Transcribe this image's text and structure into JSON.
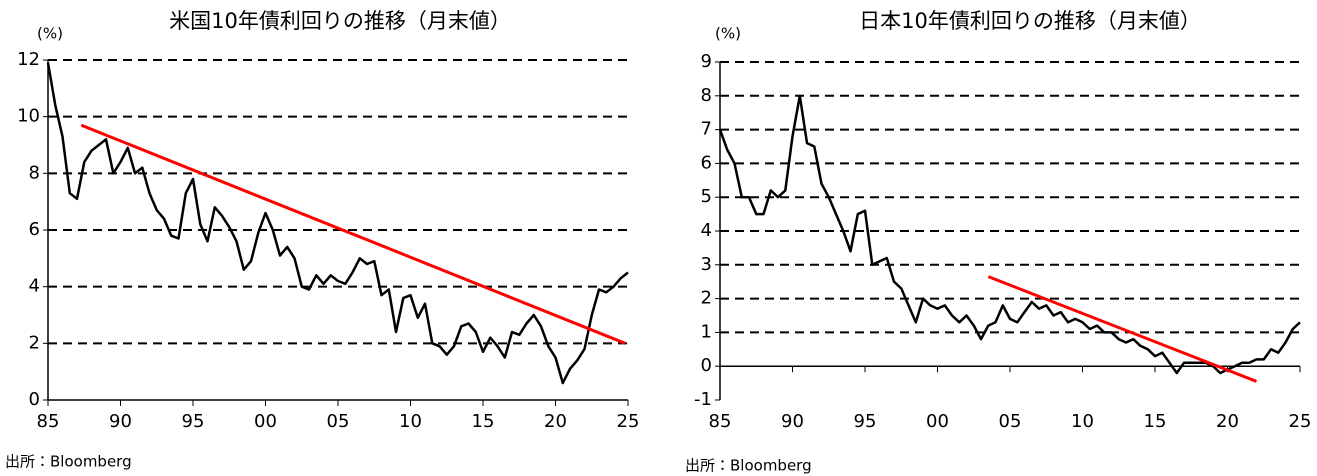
{
  "chart_data": [
    {
      "type": "line",
      "title": "米国10年債利回りの推移（月末値）",
      "y_label": "(%)",
      "source": "出所：Bloomberg",
      "xlim": [
        1985,
        2025
      ],
      "ylim": [
        0,
        12
      ],
      "grid": true,
      "xticks": [
        {
          "value": 1985,
          "label": "85"
        },
        {
          "value": 1990,
          "label": "90"
        },
        {
          "value": 1995,
          "label": "95"
        },
        {
          "value": 2000,
          "label": "00"
        },
        {
          "value": 2005,
          "label": "05"
        },
        {
          "value": 2010,
          "label": "10"
        },
        {
          "value": 2015,
          "label": "15"
        },
        {
          "value": 2020,
          "label": "20"
        },
        {
          "value": 2025,
          "label": "25"
        }
      ],
      "yticks": [
        0,
        2,
        4,
        6,
        8,
        10,
        12
      ],
      "x": [
        1985,
        1985.5,
        1986,
        1986.5,
        1987,
        1987.5,
        1988,
        1988.5,
        1989,
        1989.5,
        1990,
        1990.5,
        1991,
        1991.5,
        1992,
        1992.5,
        1993,
        1993.5,
        1994,
        1994.5,
        1995,
        1995.5,
        1996,
        1996.5,
        1997,
        1997.5,
        1998,
        1998.5,
        1999,
        1999.5,
        2000,
        2000.5,
        2001,
        2001.5,
        2002,
        2002.5,
        2003,
        2003.5,
        2004,
        2004.5,
        2005,
        2005.5,
        2006,
        2006.5,
        2007,
        2007.5,
        2008,
        2008.5,
        2009,
        2009.5,
        2010,
        2010.5,
        2011,
        2011.5,
        2012,
        2012.5,
        2013,
        2013.5,
        2014,
        2014.5,
        2015,
        2015.5,
        2016,
        2016.5,
        2017,
        2017.5,
        2018,
        2018.5,
        2019,
        2019.5,
        2020,
        2020.5,
        2021,
        2021.5,
        2022,
        2022.5,
        2023,
        2023.5,
        2024,
        2024.5,
        2025
      ],
      "series": [
        {
          "color": "#000000",
          "values": [
            11.9,
            10.4,
            9.3,
            7.3,
            7.1,
            8.4,
            8.8,
            9.0,
            9.2,
            8.0,
            8.4,
            8.9,
            8.0,
            8.2,
            7.3,
            6.7,
            6.4,
            5.8,
            5.7,
            7.3,
            7.8,
            6.2,
            5.6,
            6.8,
            6.5,
            6.1,
            5.6,
            4.6,
            4.9,
            5.9,
            6.6,
            6.0,
            5.1,
            5.4,
            5.0,
            4.0,
            3.9,
            4.4,
            4.1,
            4.4,
            4.2,
            4.1,
            4.5,
            5.0,
            4.8,
            4.9,
            3.7,
            3.9,
            2.4,
            3.6,
            3.7,
            2.9,
            3.4,
            2.0,
            1.9,
            1.6,
            1.9,
            2.6,
            2.7,
            2.4,
            1.7,
            2.2,
            1.9,
            1.5,
            2.4,
            2.3,
            2.7,
            3.0,
            2.6,
            1.9,
            1.5,
            0.6,
            1.1,
            1.4,
            1.8,
            3.0,
            3.9,
            3.8,
            4.0,
            4.3,
            4.5
          ]
        }
      ],
      "trend_lines": [
        {
          "color": "#ff0000",
          "x": [
            1987.3,
            2024.8
          ],
          "values": [
            9.7,
            2.0
          ]
        }
      ]
    },
    {
      "type": "line",
      "title": "日本10年債利回りの推移（月末値）",
      "y_label": "(%)",
      "source": "出所：Bloomberg",
      "xlim": [
        1985,
        2025
      ],
      "ylim": [
        -1,
        9
      ],
      "grid": true,
      "xticks": [
        {
          "value": 1985,
          "label": "85"
        },
        {
          "value": 1990,
          "label": "90"
        },
        {
          "value": 1995,
          "label": "95"
        },
        {
          "value": 2000,
          "label": "00"
        },
        {
          "value": 2005,
          "label": "05"
        },
        {
          "value": 2010,
          "label": "10"
        },
        {
          "value": 2015,
          "label": "15"
        },
        {
          "value": 2020,
          "label": "20"
        },
        {
          "value": 2025,
          "label": "25"
        }
      ],
      "yticks": [
        -1,
        0,
        1,
        2,
        3,
        4,
        5,
        6,
        7,
        8,
        9
      ],
      "x": [
        1985,
        1985.5,
        1986,
        1986.5,
        1987,
        1987.5,
        1988,
        1988.5,
        1989,
        1989.5,
        1990,
        1990.5,
        1991,
        1991.5,
        1992,
        1992.5,
        1993,
        1993.5,
        1994,
        1994.5,
        1995,
        1995.5,
        1996,
        1996.5,
        1997,
        1997.5,
        1998,
        1998.5,
        1999,
        1999.5,
        2000,
        2000.5,
        2001,
        2001.5,
        2002,
        2002.5,
        2003,
        2003.5,
        2004,
        2004.5,
        2005,
        2005.5,
        2006,
        2006.5,
        2007,
        2007.5,
        2008,
        2008.5,
        2009,
        2009.5,
        2010,
        2010.5,
        2011,
        2011.5,
        2012,
        2012.5,
        2013,
        2013.5,
        2014,
        2014.5,
        2015,
        2015.5,
        2016,
        2016.5,
        2017,
        2017.5,
        2018,
        2018.5,
        2019,
        2019.5,
        2020,
        2020.5,
        2021,
        2021.5,
        2022,
        2022.5,
        2023,
        2023.5,
        2024,
        2024.5,
        2025
      ],
      "series": [
        {
          "color": "#000000",
          "values": [
            7.0,
            6.4,
            6.0,
            5.0,
            5.0,
            4.5,
            4.5,
            5.2,
            5.0,
            5.2,
            6.8,
            8.0,
            6.6,
            6.5,
            5.4,
            5.0,
            4.5,
            4.0,
            3.4,
            4.5,
            4.6,
            3.0,
            3.1,
            3.2,
            2.5,
            2.3,
            1.8,
            1.3,
            2.0,
            1.8,
            1.7,
            1.8,
            1.5,
            1.3,
            1.5,
            1.2,
            0.8,
            1.2,
            1.3,
            1.8,
            1.4,
            1.3,
            1.6,
            1.9,
            1.7,
            1.8,
            1.5,
            1.6,
            1.3,
            1.4,
            1.3,
            1.1,
            1.2,
            1.0,
            1.0,
            0.8,
            0.7,
            0.8,
            0.6,
            0.5,
            0.3,
            0.4,
            0.1,
            -0.2,
            0.1,
            0.1,
            0.1,
            0.1,
            0.0,
            -0.2,
            -0.1,
            0.0,
            0.1,
            0.1,
            0.2,
            0.2,
            0.5,
            0.4,
            0.7,
            1.1,
            1.3
          ]
        }
      ],
      "trend_lines": [
        {
          "color": "#ff0000",
          "x": [
            2003.5,
            2022.0
          ],
          "values": [
            2.65,
            -0.45
          ]
        }
      ]
    }
  ]
}
